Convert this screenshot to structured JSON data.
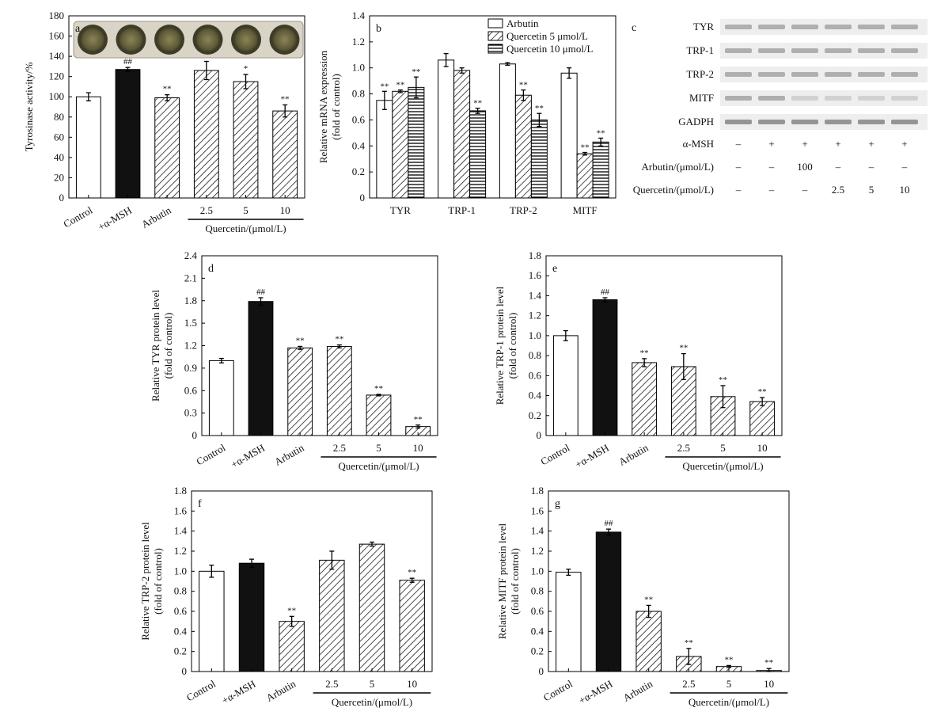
{
  "chart_data": [
    {
      "panel": "a",
      "type": "bar",
      "categories": [
        "Control",
        "+α-MSH",
        "Arbutin",
        "2.5",
        "5",
        "10"
      ],
      "values": [
        100,
        127,
        99,
        126,
        115,
        86
      ],
      "errors": [
        4,
        2,
        3,
        9,
        7,
        6
      ],
      "marks": [
        "",
        "##",
        "**",
        "",
        "*",
        "**"
      ],
      "fills": [
        "white",
        "black",
        "hatch",
        "hatch",
        "hatch",
        "hatch"
      ],
      "ylabel": "Tyrosinase activity/%",
      "ylim": [
        0,
        180
      ],
      "yticks": [
        0,
        20,
        40,
        60,
        80,
        100,
        120,
        140,
        160,
        180
      ],
      "group_label": "Quercetin/(μmol/L)",
      "inset": "photo of six tyrosinase assay wells"
    },
    {
      "panel": "b",
      "type": "bar",
      "categories": [
        "TYR",
        "TRP-1",
        "TRP-2",
        "MITF"
      ],
      "series": [
        {
          "name": "Arbutin",
          "fill": "white",
          "values": [
            0.75,
            1.06,
            1.03,
            0.96
          ],
          "errors": [
            0.07,
            0.05,
            0.01,
            0.04
          ],
          "marks": [
            "**",
            "",
            "",
            ""
          ]
        },
        {
          "name": "Quercetin 5 μmol/L",
          "fill": "hatch",
          "values": [
            0.82,
            0.98,
            0.79,
            0.34
          ],
          "errors": [
            0.01,
            0.02,
            0.04,
            0.01
          ],
          "marks": [
            "**",
            "",
            "**",
            "**"
          ]
        },
        {
          "name": "Quercetin 10 μmol/L",
          "fill": "hlines",
          "values": [
            0.85,
            0.67,
            0.6,
            0.43
          ],
          "errors": [
            0.08,
            0.02,
            0.05,
            0.03
          ],
          "marks": [
            "**",
            "**",
            "**",
            "**"
          ]
        }
      ],
      "ylabel": "Relative mRNA expression",
      "ylabel2": "(fold of control)",
      "ylim": [
        0,
        1.4
      ],
      "yticks": [
        "0",
        "0.2",
        "0.4",
        "0.6",
        "0.8",
        "1.0",
        "1.2",
        "1.4"
      ],
      "legend": "top-right"
    },
    {
      "panel": "d",
      "type": "bar",
      "categories": [
        "Control",
        "+α-MSH",
        "Arbutin",
        "2.5",
        "5",
        "10"
      ],
      "values": [
        1.0,
        1.79,
        1.17,
        1.19,
        0.54,
        0.12
      ],
      "errors": [
        0.03,
        0.05,
        0.02,
        0.02,
        0.01,
        0.02
      ],
      "marks": [
        "",
        "##",
        "**",
        "**",
        "**",
        "**"
      ],
      "fills": [
        "white",
        "black",
        "hatch",
        "hatch",
        "hatch",
        "hatch"
      ],
      "ylabel": "Relative TYR protein level",
      "ylabel2": "(fold of control)",
      "ylim": [
        0,
        2.4
      ],
      "yticks": [
        "0",
        "0.3",
        "0.6",
        "0.9",
        "1.2",
        "1.5",
        "1.8",
        "2.1",
        "2.4"
      ],
      "group_label": "Quercetin/(μmol/L)"
    },
    {
      "panel": "e",
      "type": "bar",
      "categories": [
        "Control",
        "+α-MSH",
        "Arbutin",
        "2.5",
        "5",
        "10"
      ],
      "values": [
        1.0,
        1.36,
        0.73,
        0.69,
        0.39,
        0.34
      ],
      "errors": [
        0.05,
        0.02,
        0.04,
        0.13,
        0.11,
        0.04
      ],
      "marks": [
        "",
        "##",
        "**",
        "**",
        "**",
        "**"
      ],
      "fills": [
        "white",
        "black",
        "hatch",
        "hatch",
        "hatch",
        "hatch"
      ],
      "ylabel": "Relative TRP-1 protein level",
      "ylabel2": "(fold of control)",
      "ylim": [
        0,
        1.8
      ],
      "yticks": [
        "0",
        "0.2",
        "0.4",
        "0.6",
        "0.8",
        "1.0",
        "1.2",
        "1.4",
        "1.6",
        "1.8"
      ],
      "group_label": "Quercetin/(μmol/L)"
    },
    {
      "panel": "f",
      "type": "bar",
      "categories": [
        "Control",
        "+α-MSH",
        "Arbutin",
        "2.5",
        "5",
        "10"
      ],
      "values": [
        1.0,
        1.08,
        0.5,
        1.11,
        1.27,
        0.91
      ],
      "errors": [
        0.06,
        0.04,
        0.05,
        0.09,
        0.02,
        0.02
      ],
      "marks": [
        "",
        "",
        "**",
        "",
        "",
        "**"
      ],
      "fills": [
        "white",
        "black",
        "hatch",
        "hatch",
        "hatch",
        "hatch"
      ],
      "ylabel": "Relative TRP-2 protein level",
      "ylabel2": "(fold of control)",
      "ylim": [
        0,
        1.8
      ],
      "yticks": [
        "0",
        "0.2",
        "0.4",
        "0.6",
        "0.8",
        "1.0",
        "1.2",
        "1.4",
        "1.6",
        "1.8"
      ],
      "group_label": "Quercetin/(μmol/L)"
    },
    {
      "panel": "g",
      "type": "bar",
      "categories": [
        "Control",
        "+α-MSH",
        "Arbutin",
        "2.5",
        "5",
        "10"
      ],
      "values": [
        0.99,
        1.39,
        0.6,
        0.15,
        0.05,
        0.01
      ],
      "errors": [
        0.03,
        0.03,
        0.06,
        0.08,
        0.01,
        0.02
      ],
      "marks": [
        "",
        "##",
        "**",
        "**",
        "**",
        "**"
      ],
      "fills": [
        "white",
        "black",
        "hatch",
        "hatch",
        "hatch",
        "hatch"
      ],
      "ylabel": "Relative MITF protein level",
      "ylabel2": "(fold of control)",
      "ylim": [
        0,
        1.8
      ],
      "yticks": [
        "0",
        "0.2",
        "0.4",
        "0.6",
        "0.8",
        "1.0",
        "1.2",
        "1.4",
        "1.6",
        "1.8"
      ],
      "group_label": "Quercetin/(μmol/L)"
    }
  ],
  "western_blot": {
    "panel": "c",
    "bands": [
      "TYR",
      "TRP-1",
      "TRP-2",
      "MITF",
      "GADPH"
    ],
    "treatments": [
      {
        "label": "α-MSH",
        "values": [
          "–",
          "+",
          "+",
          "+",
          "+",
          "+"
        ]
      },
      {
        "label": "Arbutin/(μmol/L)",
        "values": [
          "–",
          "–",
          "100",
          "–",
          "–",
          "–"
        ]
      },
      {
        "label": "Quercetin/(μmol/L)",
        "values": [
          "–",
          "–",
          "–",
          "2.5",
          "5",
          "10"
        ]
      }
    ]
  }
}
